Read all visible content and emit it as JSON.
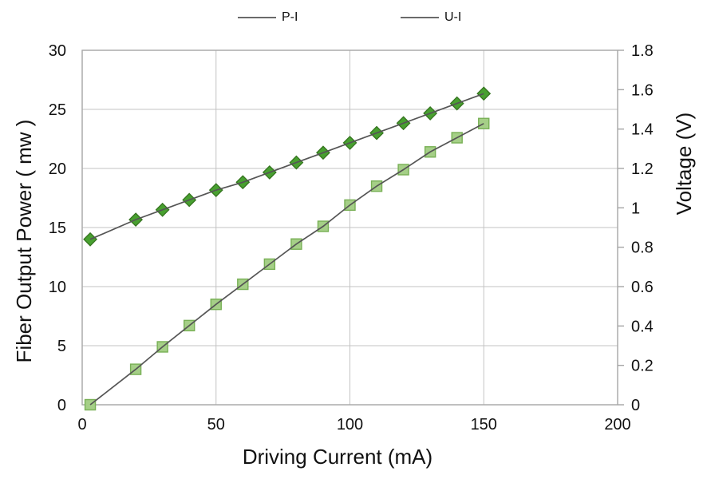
{
  "chart_data": {
    "type": "line",
    "title": "",
    "xlabel": "Driving Current  (mA)",
    "ylabel_left": "Fiber Output Power ( mw )",
    "ylabel_right": "Voltage  (V)",
    "legend_position": "top",
    "grid": true,
    "x": [
      3,
      20,
      30,
      40,
      50,
      60,
      70,
      80,
      90,
      100,
      110,
      120,
      130,
      140,
      150
    ],
    "series": [
      {
        "name": "P-I",
        "axis": "left",
        "marker": "square",
        "values": [
          0,
          3.0,
          4.9,
          6.7,
          8.5,
          10.2,
          11.9,
          13.6,
          15.1,
          16.9,
          18.5,
          19.9,
          21.4,
          22.6,
          23.8
        ]
      },
      {
        "name": "U-I",
        "axis": "right",
        "marker": "diamond",
        "values": [
          0.84,
          0.94,
          0.99,
          1.04,
          1.09,
          1.13,
          1.18,
          1.23,
          1.28,
          1.33,
          1.38,
          1.43,
          1.48,
          1.53,
          1.58
        ]
      }
    ],
    "xlim": [
      0,
      200
    ],
    "ylim_left": [
      0,
      30
    ],
    "ylim_right": [
      0,
      1.8
    ],
    "xticks": [
      "0",
      "50",
      "100",
      "150",
      "200"
    ],
    "yticks_left": [
      "0",
      "5",
      "10",
      "15",
      "20",
      "25",
      "30"
    ],
    "yticks_right": [
      "0",
      "0.2",
      "0.4",
      "0.6",
      "0.8",
      "1",
      "1.2",
      "1.4",
      "1.6",
      "1.8"
    ],
    "colors": {
      "line": "#555555",
      "grid": "#c3c3c3",
      "border": "#a6a6a6",
      "text": "#111111",
      "legend_line": "#6a6a6a",
      "square_fill": "#a5cf87",
      "square_stroke": "#78b055",
      "diamond_fill": "#48a030",
      "diamond_stroke": "#35741f",
      "background": "#ffffff"
    }
  }
}
